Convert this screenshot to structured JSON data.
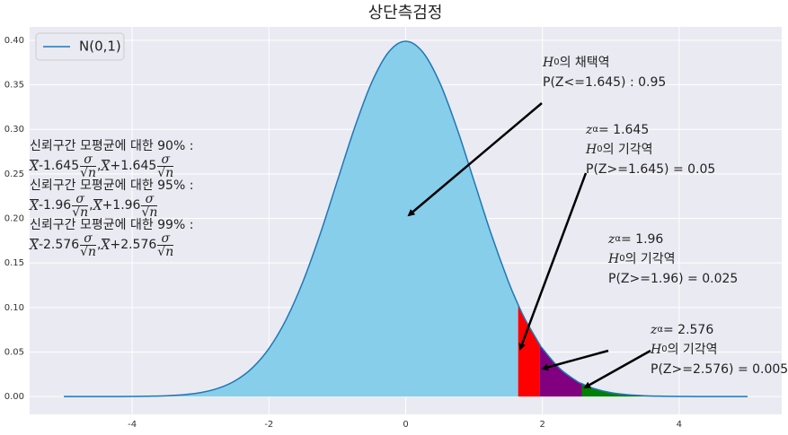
{
  "chart_data": {
    "type": "line",
    "title": "상단측검정",
    "x": [
      -5,
      -4.75,
      -4.5,
      -4.25,
      -4,
      -3.75,
      -3.5,
      -3.25,
      -3,
      -2.75,
      -2.5,
      -2.25,
      -2,
      -1.75,
      -1.5,
      -1.25,
      -1,
      -0.75,
      -0.5,
      -0.25,
      0,
      0.25,
      0.5,
      0.75,
      1,
      1.25,
      1.5,
      1.645,
      1.75,
      1.96,
      2,
      2.25,
      2.5,
      2.576,
      2.75,
      3,
      3.25,
      3.5,
      3.75,
      4,
      4.25,
      4.5,
      4.75,
      5
    ],
    "series": [
      {
        "name": "N(0,1)",
        "color": "#1f77b4",
        "values": [
          0,
          1e-05,
          2e-05,
          5e-05,
          0.0001,
          0.0004,
          0.0009,
          0.002,
          0.0044,
          0.0091,
          0.0175,
          0.0317,
          0.054,
          0.0863,
          0.1295,
          0.1826,
          0.242,
          0.3011,
          0.3521,
          0.3867,
          0.3989,
          0.3867,
          0.3521,
          0.3011,
          0.242,
          0.1826,
          0.1295,
          0.1031,
          0.0863,
          0.0584,
          0.054,
          0.0317,
          0.0175,
          0.0145,
          0.0091,
          0.0044,
          0.002,
          0.0009,
          0.0004,
          0.0001,
          5e-05,
          2e-05,
          1e-05,
          0
        ]
      }
    ],
    "fills": [
      {
        "x": [
          -5,
          1.645
        ],
        "color": "#87ceeb"
      },
      {
        "x": [
          1.645,
          1.96
        ],
        "color": "#ff0000"
      },
      {
        "x": [
          1.96,
          2.576
        ],
        "color": "#800080"
      },
      {
        "x": [
          2.576,
          5
        ],
        "color": "#008000"
      }
    ],
    "xlim": [
      -5.5,
      5.5
    ],
    "ylim": [
      -0.02,
      0.415
    ],
    "xticks": [
      -4,
      -2,
      0,
      2,
      4
    ],
    "yticks": [
      {
        "value": 0,
        "label": "0.00"
      },
      {
        "value": 0.05,
        "label": "0.05"
      },
      {
        "value": 0.1,
        "label": "0.10"
      },
      {
        "value": 0.15,
        "label": "0.15"
      },
      {
        "value": 0.2,
        "label": "0.20"
      },
      {
        "value": 0.25,
        "label": "0.25"
      },
      {
        "value": 0.3,
        "label": "0.30"
      },
      {
        "value": 0.35,
        "label": "0.35"
      },
      {
        "value": 0.4,
        "label": "0.40"
      }
    ],
    "grid": true,
    "legend": "upper left",
    "annotations": [
      {
        "lines": [
          [
            {
              "italic": "H"
            },
            {
              "sub": "0"
            },
            "의 채택역"
          ],
          [
            "P(Z<=1.645) : 0.95"
          ]
        ]
      },
      {
        "lines": [
          [
            {
              "italic": "z"
            },
            {
              "sub": "α"
            },
            " = 1.645"
          ],
          [
            {
              "italic": "H"
            },
            {
              "sub": "0"
            },
            "의 기각역"
          ],
          [
            "P(Z>=1.645) = 0.05"
          ]
        ]
      },
      {
        "lines": [
          [
            {
              "italic": "z"
            },
            {
              "sub": "α"
            },
            " = 1.96"
          ],
          [
            {
              "italic": "H"
            },
            {
              "sub": "0"
            },
            "의 기각역"
          ],
          [
            "P(Z>=1.96) = 0.025"
          ]
        ]
      },
      {
        "lines": [
          [
            {
              "italic": "z"
            },
            {
              "sub": "α"
            },
            " = 2.576"
          ],
          [
            {
              "italic": "H"
            },
            {
              "sub": "0"
            },
            "의 기각역"
          ],
          [
            "P(Z>=2.576) = 0.005"
          ]
        ]
      },
      {
        "lines": [
          [
            "신뢰구간 모평균에 대한 90% :"
          ],
          [
            {
              "bar": "X"
            },
            "-1.645",
            {
              "frac": [
                "σ",
                "√n"
              ]
            },
            ",",
            {
              "bar": "X"
            },
            "+1.645",
            {
              "frac": [
                "σ",
                "√n"
              ]
            }
          ],
          [
            "신뢰구간 모평균에 대한 95% :"
          ],
          [
            {
              "bar": "X"
            },
            "-1.96",
            {
              "frac": [
                "σ",
                "√n"
              ]
            },
            ",",
            {
              "bar": "X"
            },
            "+1.96",
            {
              "frac": [
                "σ",
                "√n"
              ]
            }
          ],
          [
            "신뢰구간 모평균에 대한 99% :"
          ],
          [
            {
              "bar": "X"
            },
            "-2.576",
            {
              "frac": [
                "σ",
                "√n"
              ]
            },
            ",",
            {
              "bar": "X"
            },
            "+2.576",
            {
              "frac": [
                "σ",
                "√n"
              ]
            }
          ]
        ]
      }
    ]
  }
}
